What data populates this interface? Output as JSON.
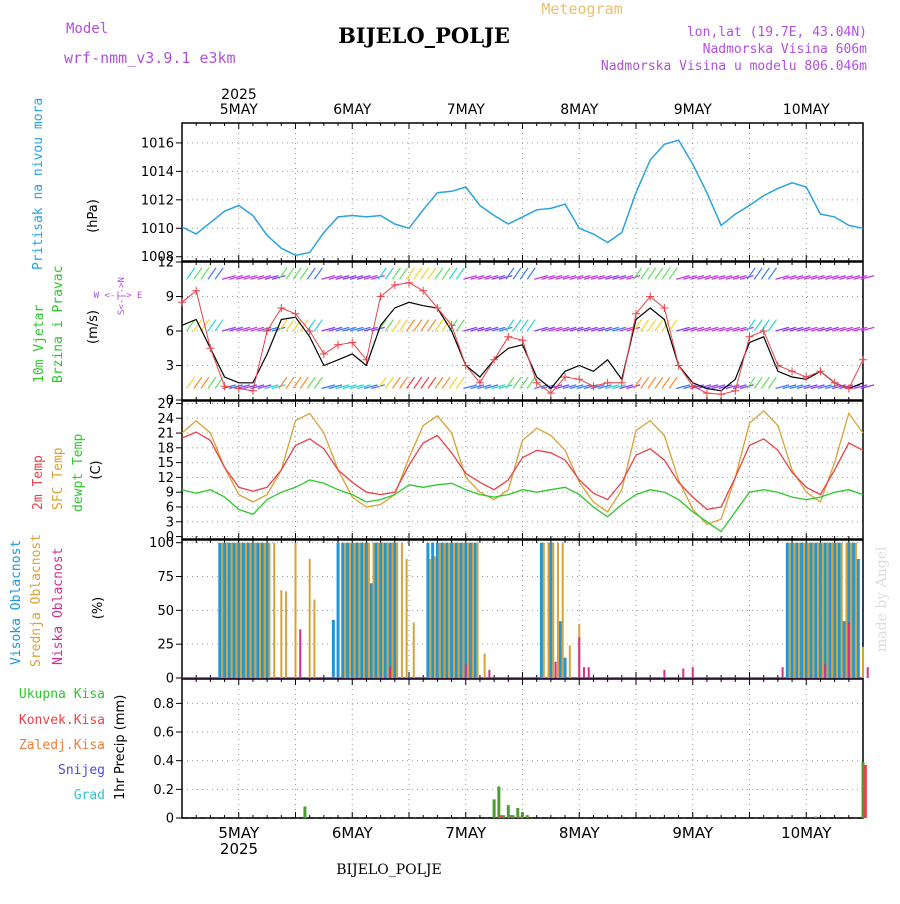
{
  "header": {
    "model_label": "Model",
    "model_value": "wrf-nmm_v3.9.1 e3km",
    "meteogram_label": "Meteogram",
    "station_title": "BIJELO_POLJE",
    "lonlat": "lon,lat (19.7E, 43.04N)",
    "altitude": "Nadmorska Visina 606m",
    "model_altitude": "Nadmorska Visina u modelu 806.046m",
    "footer_station": "BIJELO_POLJE",
    "credit": "made by Angel"
  },
  "colors": {
    "pressure": "#29a3e0",
    "temp2m": "#e8434a",
    "sfc": "#d9a236",
    "dewpt": "#2ec72e",
    "purple": "#b24fe0",
    "grid": "#999999",
    "wind_speed": "#000000",
    "gust": "#e8434a",
    "high_cloud": "#1e96d8",
    "mid_cloud": "#d9a236",
    "low_cloud": "#d62d8e"
  },
  "time_axis": {
    "year": "2025",
    "days": [
      "5MAY",
      "6MAY",
      "7MAY",
      "8MAY",
      "9MAY",
      "10MAY"
    ],
    "start_hour_offset": -12,
    "end_hour": 132
  },
  "chart_data": [
    {
      "type": "line",
      "name": "pressure",
      "ylabel": "Pritisak na nivou mora",
      "unit": "(hPa)",
      "yticks": [
        1008,
        1010,
        1012,
        1014,
        1016
      ],
      "ylim": [
        1007.7,
        1017.4
      ],
      "x_hours": [
        -12,
        -9,
        -6,
        -3,
        0,
        3,
        6,
        9,
        12,
        15,
        18,
        21,
        24,
        27,
        30,
        33,
        36,
        39,
        42,
        45,
        48,
        51,
        54,
        57,
        60,
        63,
        66,
        69,
        72,
        75,
        78,
        81,
        84,
        87,
        90,
        93,
        96,
        99,
        102,
        105,
        108,
        111,
        114,
        117,
        120,
        123,
        126,
        129,
        132
      ],
      "values": [
        1010.1,
        1009.6,
        1010.4,
        1011.2,
        1011.6,
        1010.9,
        1009.5,
        1008.6,
        1008.1,
        1008.3,
        1009.7,
        1010.8,
        1010.9,
        1010.8,
        1010.9,
        1010.3,
        1010.0,
        1011.3,
        1012.5,
        1012.6,
        1012.9,
        1011.6,
        1010.9,
        1010.3,
        1010.8,
        1011.3,
        1011.4,
        1011.7,
        1010.0,
        1009.6,
        1009.0,
        1009.7,
        1012.5,
        1014.8,
        1015.9,
        1016.2,
        1014.5,
        1012.5,
        1010.2,
        1011.0,
        1011.6,
        1012.3,
        1012.8,
        1013.2,
        1012.9,
        1011.0,
        1010.8,
        1010.2,
        1010.0
      ]
    },
    {
      "type": "line",
      "name": "wind",
      "ylabel": "10m Vjetar Brzina i Pravac",
      "unit": "(m/s)",
      "compass": "W <-|-> E",
      "compass_v": "S<-|->N",
      "yticks": [
        0,
        3,
        6,
        9,
        12
      ],
      "ylim": [
        0,
        12
      ],
      "x_hours": [
        -12,
        -9,
        -6,
        -3,
        0,
        3,
        6,
        9,
        12,
        15,
        18,
        21,
        24,
        27,
        30,
        33,
        36,
        39,
        42,
        45,
        48,
        51,
        54,
        57,
        60,
        63,
        66,
        69,
        72,
        75,
        78,
        81,
        84,
        87,
        90,
        93,
        96,
        99,
        102,
        105,
        108,
        111,
        114,
        117,
        120,
        123,
        126,
        129,
        132
      ],
      "series": [
        {
          "name": "speed",
          "values": [
            6.5,
            7.0,
            4.5,
            2.0,
            1.5,
            1.5,
            4.0,
            7.0,
            7.2,
            5.5,
            3.0,
            3.5,
            4.0,
            3.0,
            6.5,
            8.0,
            8.5,
            8.2,
            8.0,
            6.0,
            3.0,
            2.0,
            3.5,
            4.5,
            4.8,
            2.0,
            1.0,
            2.5,
            3.0,
            2.5,
            3.5,
            1.8,
            7.0,
            8.0,
            7.0,
            3.0,
            1.5,
            1.0,
            0.8,
            1.8,
            5.0,
            5.5,
            2.5,
            2.0,
            1.8,
            2.5,
            1.5,
            1.0,
            1.5
          ]
        },
        {
          "name": "gust",
          "values": [
            8.5,
            9.5,
            4.5,
            1.2,
            1.0,
            0.8,
            6.0,
            8.0,
            7.5,
            6.0,
            4.0,
            4.8,
            5.0,
            3.5,
            9.0,
            10.0,
            10.2,
            9.5,
            8.0,
            6.5,
            3.0,
            1.5,
            3.5,
            5.5,
            5.2,
            1.5,
            0.6,
            2.0,
            1.8,
            1.2,
            1.5,
            1.5,
            7.5,
            9.0,
            8.0,
            3.0,
            1.2,
            0.6,
            0.5,
            0.8,
            5.5,
            6.0,
            3.0,
            2.5,
            2.0,
            2.5,
            1.5,
            1.0,
            3.5
          ]
        }
      ]
    },
    {
      "type": "line",
      "name": "temperature",
      "ylabels": [
        "2m Temp",
        "SFC Temp",
        "dewpt Temp"
      ],
      "unit": "(C)",
      "yticks": [
        0,
        3,
        6,
        9,
        12,
        15,
        18,
        21,
        24,
        27
      ],
      "ylim": [
        -0.5,
        27.5
      ],
      "x_hours": [
        -12,
        -9,
        -6,
        -3,
        0,
        3,
        6,
        9,
        12,
        15,
        18,
        21,
        24,
        27,
        30,
        33,
        36,
        39,
        42,
        45,
        48,
        51,
        54,
        57,
        60,
        63,
        66,
        69,
        72,
        75,
        78,
        81,
        84,
        87,
        90,
        93,
        96,
        99,
        102,
        105,
        108,
        111,
        114,
        117,
        120,
        123,
        126,
        129,
        132
      ],
      "series": [
        {
          "name": "2m Temp",
          "values": [
            20.0,
            21.2,
            19.5,
            14.0,
            10.0,
            9.2,
            10.0,
            13.5,
            18.5,
            19.8,
            17.8,
            13.5,
            11.0,
            9.0,
            8.5,
            9.0,
            14.5,
            19.0,
            20.5,
            17.0,
            12.8,
            11.0,
            9.5,
            11.5,
            16.0,
            17.5,
            17.0,
            15.5,
            11.5,
            8.8,
            7.5,
            11.0,
            16.5,
            17.8,
            15.5,
            11.0,
            8.0,
            5.5,
            6.0,
            12.0,
            18.5,
            19.8,
            17.5,
            13.0,
            10.0,
            8.5,
            13.5,
            19.0,
            17.5
          ]
        },
        {
          "name": "SFC Temp",
          "values": [
            21.0,
            23.5,
            21.0,
            14.0,
            8.5,
            7.0,
            8.5,
            13.5,
            23.5,
            25.0,
            21.0,
            13.5,
            8.0,
            6.0,
            6.5,
            8.5,
            16.0,
            22.5,
            24.5,
            21.0,
            12.0,
            9.0,
            7.5,
            9.5,
            19.5,
            22.0,
            20.5,
            17.5,
            11.0,
            7.0,
            5.0,
            9.5,
            21.5,
            23.5,
            20.5,
            11.5,
            5.5,
            2.5,
            3.5,
            12.0,
            23.0,
            25.5,
            22.5,
            13.5,
            9.0,
            7.0,
            15.0,
            25.0,
            21.0
          ]
        },
        {
          "name": "dewpt Temp",
          "values": [
            9.5,
            8.8,
            9.5,
            8.0,
            5.5,
            4.5,
            7.5,
            9.0,
            10.0,
            11.5,
            10.8,
            9.5,
            8.5,
            7.0,
            7.5,
            8.5,
            10.5,
            10.0,
            10.5,
            10.8,
            9.5,
            8.5,
            8.0,
            8.5,
            9.5,
            9.0,
            9.5,
            10.0,
            8.5,
            6.0,
            4.0,
            6.5,
            8.5,
            9.5,
            9.0,
            7.5,
            5.0,
            3.0,
            1.0,
            5.0,
            9.0,
            9.5,
            9.0,
            8.0,
            7.5,
            8.0,
            9.0,
            9.5,
            8.5
          ]
        }
      ]
    },
    {
      "type": "bar",
      "name": "cloud_cover",
      "ylabels": [
        "Visoka Oblacnost",
        "Srednja Oblacnost",
        "Niska Oblacnost"
      ],
      "unit": "(%)",
      "yticks": [
        0,
        25,
        50,
        75,
        100
      ],
      "ylim": [
        0,
        102
      ],
      "series": [
        {
          "name": "Visoka Oblacnost",
          "x_hours": [
            -4,
            -3,
            -2,
            -1,
            0,
            1,
            2,
            3,
            4,
            5,
            6,
            20,
            21,
            22,
            23,
            24,
            25,
            26,
            27,
            28,
            29,
            30,
            31,
            32,
            33,
            40,
            41,
            42,
            43,
            44,
            45,
            46,
            47,
            48,
            49,
            50,
            64,
            66,
            68,
            69,
            116,
            117,
            118,
            119,
            120,
            121,
            122,
            123,
            124,
            125,
            126,
            127,
            128,
            129,
            130,
            131
          ],
          "values": [
            100,
            100,
            100,
            100,
            100,
            100,
            100,
            100,
            100,
            100,
            100,
            43,
            100,
            100,
            100,
            100,
            100,
            100,
            100,
            70,
            100,
            100,
            100,
            100,
            100,
            100,
            100,
            100,
            100,
            100,
            100,
            100,
            100,
            100,
            100,
            100,
            100,
            100,
            42,
            15,
            100,
            100,
            100,
            100,
            100,
            100,
            100,
            100,
            100,
            100,
            100,
            100,
            42,
            100,
            100,
            88
          ]
        },
        {
          "name": "Srednja Oblacnost",
          "x_hours": [
            -3.5,
            -2.5,
            -1.5,
            -0.5,
            0.5,
            1.5,
            2.5,
            3.5,
            4.5,
            5.5,
            6.5,
            7.5,
            9,
            10,
            12,
            15,
            16,
            22.5,
            23.5,
            24.5,
            25.5,
            26.5,
            27.5,
            28.5,
            29.5,
            30.5,
            31.5,
            32.5,
            33.5,
            34.5,
            35.5,
            37,
            40.5,
            41.5,
            42.5,
            43.5,
            44.5,
            45.5,
            46.5,
            47.5,
            48.5,
            49.5,
            50.5,
            52,
            64.5,
            65.5,
            66.5,
            67.5,
            68.5,
            70,
            72,
            116.5,
            117.5,
            118.5,
            119.5,
            120.5,
            121.5,
            122.5,
            123.5,
            124.5,
            125.5,
            126.5,
            127.5,
            128.5,
            129.5,
            130.5,
            132
          ],
          "values": [
            100,
            100,
            100,
            100,
            100,
            100,
            100,
            100,
            100,
            100,
            100,
            100,
            65,
            64,
            100,
            88,
            58,
            100,
            100,
            100,
            100,
            100,
            100,
            100,
            100,
            100,
            100,
            100,
            100,
            100,
            88,
            41,
            88,
            90,
            100,
            100,
            100,
            100,
            100,
            100,
            100,
            100,
            100,
            18,
            100,
            100,
            100,
            100,
            100,
            24,
            40,
            100,
            100,
            100,
            100,
            100,
            100,
            100,
            100,
            100,
            100,
            100,
            100,
            100,
            100,
            100,
            23
          ]
        },
        {
          "name": "Niska Oblacnost",
          "x_hours": [
            13,
            32,
            48,
            53,
            67,
            72,
            74,
            73,
            90,
            94,
            96,
            115,
            124,
            129,
            133
          ],
          "values": [
            36,
            8,
            10,
            6,
            12,
            30,
            8,
            8,
            6,
            7,
            8,
            8,
            10,
            41,
            8
          ]
        }
      ]
    },
    {
      "type": "bar",
      "name": "precipitation",
      "ylabel": "1hr Precip (mm)",
      "legend": [
        "Ukupna Kisa",
        "Konvek.Kisa",
        "Zaledj.Kisa",
        "Snijeg",
        "Grad"
      ],
      "yticks": [
        0,
        0.2,
        0.4,
        0.6,
        0.8
      ],
      "ylim": [
        0,
        0.97
      ],
      "series": [
        {
          "name": "Ukupna Kisa",
          "x_hours": [
            14,
            54,
            55,
            56,
            57,
            58,
            59,
            60,
            61,
            122,
            132
          ],
          "values": [
            0.08,
            0.13,
            0.22,
            0.02,
            0.09,
            0.02,
            0.07,
            0.04,
            0.02,
            0.01,
            0.39
          ]
        },
        {
          "name": "Konvek.Kisa",
          "x_hours": [
            55.5,
            57.5,
            59.5,
            132.5
          ],
          "values": [
            0.02,
            0.02,
            0.01,
            0.37
          ]
        }
      ]
    }
  ]
}
